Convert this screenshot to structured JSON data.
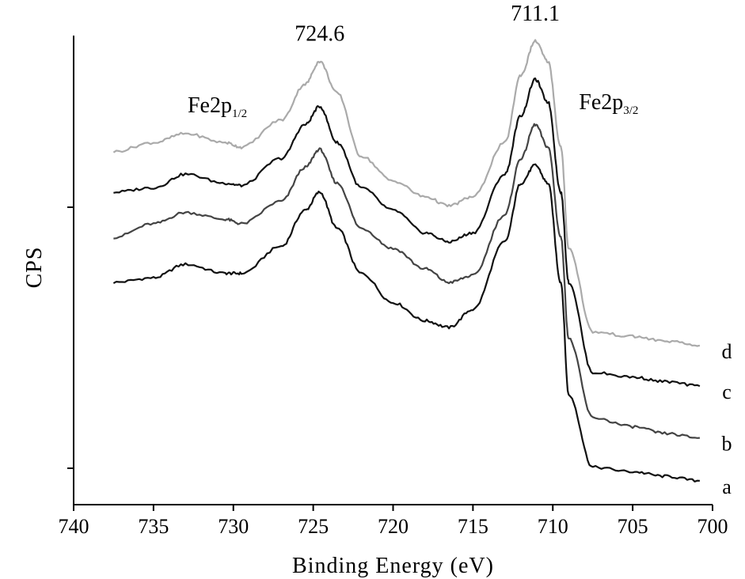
{
  "chart_data": {
    "type": "line",
    "xlabel": "Binding Energy (eV)",
    "ylabel": "CPS",
    "xlim": [
      740,
      700
    ],
    "x_reversed": true,
    "x_ticks": [
      740,
      735,
      730,
      725,
      720,
      715,
      710,
      705,
      700
    ],
    "y_ticks_labeled": false,
    "y_tick_count": 2,
    "grid": false,
    "legend": "none",
    "peaks": [
      {
        "label": "724.6",
        "x": 724.6
      },
      {
        "label": "711.1",
        "x": 711.1
      }
    ],
    "annotations": [
      {
        "base": "Fe2p",
        "sub": "1/2",
        "x": 731
      },
      {
        "base": "Fe2p",
        "sub": "3/2",
        "x": 706.5
      }
    ],
    "x": [
      737.5,
      735,
      733,
      730.5,
      729.5,
      727,
      725.5,
      724.6,
      723.5,
      722,
      720,
      718,
      716.5,
      715,
      713,
      712,
      711.1,
      710.3,
      709.5,
      709,
      707.5,
      705,
      703,
      700.8
    ],
    "series": [
      {
        "name": "a",
        "color": "#111111",
        "values": [
          0.0,
          0.02,
          0.08,
          0.04,
          0.04,
          0.16,
          0.32,
          0.4,
          0.24,
          0.04,
          -0.09,
          -0.17,
          -0.2,
          -0.12,
          0.18,
          0.44,
          0.52,
          0.44,
          0.0,
          -0.5,
          -0.82,
          -0.84,
          -0.86,
          -0.88
        ]
      },
      {
        "name": "b",
        "color": "#444444",
        "values": [
          0.2,
          0.26,
          0.31,
          0.28,
          0.26,
          0.36,
          0.51,
          0.59,
          0.44,
          0.24,
          0.15,
          0.06,
          0.0,
          0.03,
          0.3,
          0.55,
          0.7,
          0.6,
          0.2,
          -0.25,
          -0.6,
          -0.64,
          -0.67,
          -0.69
        ]
      },
      {
        "name": "c",
        "color": "#111111",
        "values": [
          0.4,
          0.42,
          0.48,
          0.44,
          0.43,
          0.55,
          0.7,
          0.78,
          0.62,
          0.42,
          0.32,
          0.22,
          0.18,
          0.22,
          0.48,
          0.74,
          0.9,
          0.8,
          0.4,
          0.0,
          -0.4,
          -0.42,
          -0.44,
          -0.46
        ]
      },
      {
        "name": "d",
        "color": "#aaaaaa",
        "values": [
          0.58,
          0.62,
          0.66,
          0.62,
          0.6,
          0.72,
          0.88,
          0.98,
          0.84,
          0.56,
          0.45,
          0.38,
          0.34,
          0.38,
          0.62,
          0.92,
          1.07,
          0.98,
          0.6,
          0.15,
          -0.22,
          -0.24,
          -0.26,
          -0.28
        ]
      }
    ]
  }
}
